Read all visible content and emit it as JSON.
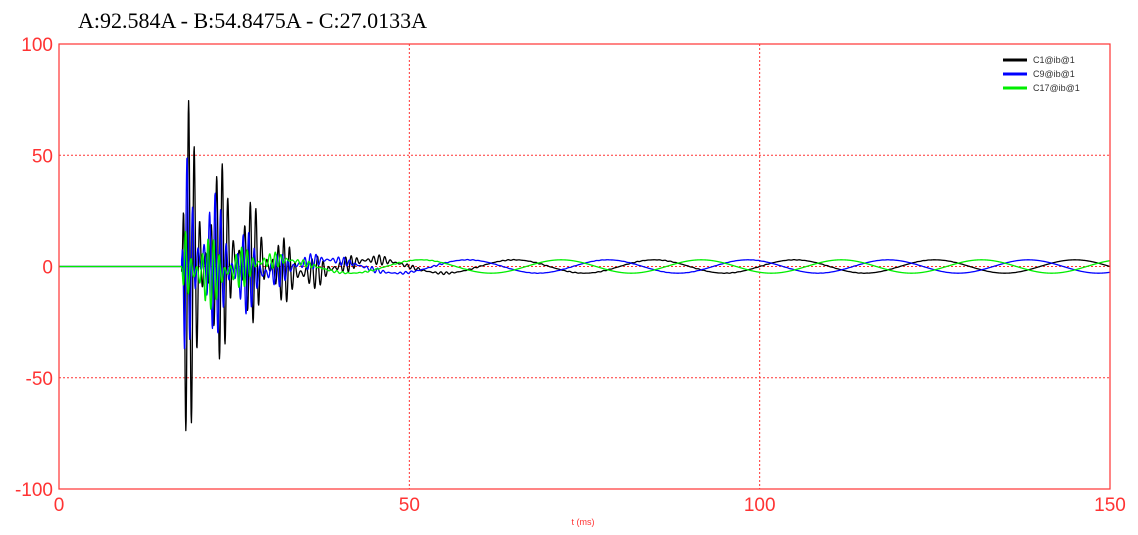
{
  "chart_data": {
    "type": "line",
    "title": "A:92.584A - B:54.8475A - C:27.0133A",
    "xlabel": "t (ms)",
    "ylabel": "",
    "xlim": [
      0,
      150
    ],
    "ylim": [
      -100,
      100
    ],
    "xticks": [
      0,
      50,
      100,
      150
    ],
    "yticks": [
      -100,
      -50,
      0,
      50,
      100
    ],
    "grid": true,
    "legend_position": "top-right",
    "colors": {
      "axis": "#ff3333",
      "grid": "#ff3333"
    },
    "fault_start_ms": 17.5,
    "frequency_hz": 50,
    "series": [
      {
        "name": "C1@ib@1",
        "color": "#000000",
        "peak": 92.584,
        "steady_amplitude": 3,
        "phase_deg": 0,
        "envelope_x": [
          17.5,
          18,
          20,
          25,
          30,
          35,
          40,
          50,
          60,
          150
        ],
        "envelope_amp": [
          0,
          86,
          60,
          40,
          22,
          12,
          7,
          4,
          3.2,
          3
        ]
      },
      {
        "name": "C9@ib@1",
        "color": "#0000ff",
        "peak": 54.8475,
        "steady_amplitude": 3,
        "phase_deg": 120,
        "envelope_x": [
          17.5,
          18,
          20,
          25,
          30,
          35,
          40,
          50,
          60,
          150
        ],
        "envelope_amp": [
          0,
          54,
          42,
          28,
          12,
          7,
          5,
          3.5,
          3.1,
          3
        ]
      },
      {
        "name": "C17@ib@1",
        "color": "#00ee00",
        "peak": 27.0133,
        "steady_amplitude": 3,
        "phase_deg": 240,
        "envelope_x": [
          17.5,
          18,
          20,
          25,
          30,
          35,
          40,
          50,
          60,
          150
        ],
        "envelope_amp": [
          0,
          27,
          22,
          14,
          7,
          4.5,
          3.5,
          3.2,
          3,
          3
        ]
      }
    ]
  }
}
